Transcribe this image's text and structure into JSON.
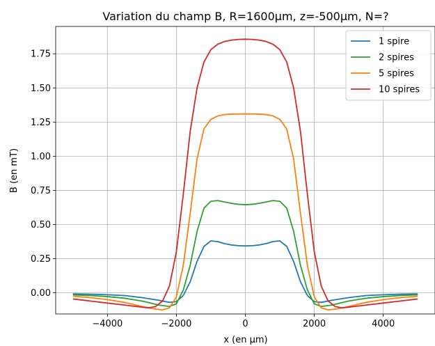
{
  "chart_data": {
    "type": "line",
    "title": "Variation du champ B, R=1600µm, z=-500µm, N=?",
    "xlabel": "x (en µm)",
    "ylabel": "B (en mT)",
    "xlim": [
      -5500,
      5500
    ],
    "ylim": [
      -0.155,
      1.95
    ],
    "xticks": [
      -4000,
      -2000,
      0,
      2000,
      4000
    ],
    "xtick_labels": [
      "−4000",
      "−2000",
      "0",
      "2000",
      "4000"
    ],
    "yticks": [
      0.0,
      0.25,
      0.5,
      0.75,
      1.0,
      1.25,
      1.5,
      1.75
    ],
    "ytick_labels": [
      "0.00",
      "0.25",
      "0.50",
      "0.75",
      "1.00",
      "1.25",
      "1.50",
      "1.75"
    ],
    "grid": true,
    "legend_position": "top-right",
    "series": [
      {
        "name": "1 spire",
        "color": "#1f77b4",
        "x": [
          -5000,
          -4500,
          -4000,
          -3500,
          -3000,
          -2500,
          -2200,
          -2000,
          -1800,
          -1600,
          -1400,
          -1200,
          -1000,
          -800,
          -600,
          -400,
          -200,
          0,
          200,
          400,
          600,
          800,
          1000,
          1200,
          1400,
          1600,
          1800,
          2000,
          2200,
          2500,
          3000,
          3500,
          4000,
          4500,
          5000
        ],
        "y": [
          -0.008,
          -0.01,
          -0.014,
          -0.02,
          -0.035,
          -0.055,
          -0.07,
          -0.065,
          -0.02,
          0.08,
          0.23,
          0.34,
          0.38,
          0.375,
          0.36,
          0.35,
          0.345,
          0.343,
          0.345,
          0.35,
          0.36,
          0.375,
          0.38,
          0.34,
          0.23,
          0.08,
          -0.02,
          -0.065,
          -0.07,
          -0.055,
          -0.035,
          -0.02,
          -0.014,
          -0.01,
          -0.008
        ]
      },
      {
        "name": "2 spires",
        "color": "#2ca02c",
        "x": [
          -5000,
          -4500,
          -4000,
          -3500,
          -3000,
          -2500,
          -2200,
          -2000,
          -1800,
          -1600,
          -1400,
          -1200,
          -1000,
          -800,
          -600,
          -400,
          -200,
          0,
          200,
          400,
          600,
          800,
          1000,
          1200,
          1400,
          1600,
          1800,
          2000,
          2200,
          2500,
          3000,
          3500,
          4000,
          4500,
          5000
        ],
        "y": [
          -0.015,
          -0.02,
          -0.028,
          -0.04,
          -0.06,
          -0.09,
          -0.1,
          -0.08,
          0.02,
          0.2,
          0.45,
          0.62,
          0.67,
          0.675,
          0.665,
          0.655,
          0.648,
          0.645,
          0.648,
          0.655,
          0.665,
          0.675,
          0.67,
          0.62,
          0.45,
          0.2,
          0.02,
          -0.08,
          -0.1,
          -0.09,
          -0.06,
          -0.04,
          -0.028,
          -0.02,
          -0.015
        ]
      },
      {
        "name": "5 spires",
        "color": "#ff7f0e",
        "x": [
          -5000,
          -4500,
          -4000,
          -3500,
          -3000,
          -2600,
          -2400,
          -2200,
          -2000,
          -1800,
          -1600,
          -1400,
          -1200,
          -1000,
          -800,
          -600,
          -400,
          -200,
          0,
          200,
          400,
          600,
          800,
          1000,
          1200,
          1400,
          1600,
          1800,
          2000,
          2200,
          2400,
          2600,
          3000,
          3500,
          4000,
          4500,
          5000
        ],
        "y": [
          -0.025,
          -0.035,
          -0.05,
          -0.07,
          -0.1,
          -0.12,
          -0.125,
          -0.11,
          -0.03,
          0.2,
          0.58,
          0.98,
          1.2,
          1.27,
          1.295,
          1.305,
          1.308,
          1.309,
          1.31,
          1.309,
          1.308,
          1.305,
          1.295,
          1.27,
          1.2,
          0.98,
          0.58,
          0.2,
          -0.03,
          -0.11,
          -0.125,
          -0.12,
          -0.1,
          -0.07,
          -0.05,
          -0.035,
          -0.025
        ]
      },
      {
        "name": "10 spires",
        "color": "#d62728",
        "x": [
          -5000,
          -4500,
          -4000,
          -3500,
          -3000,
          -2800,
          -2600,
          -2400,
          -2200,
          -2000,
          -1800,
          -1600,
          -1400,
          -1200,
          -1000,
          -800,
          -600,
          -400,
          -200,
          0,
          200,
          400,
          600,
          800,
          1000,
          1200,
          1400,
          1600,
          1800,
          2000,
          2200,
          2400,
          2600,
          2800,
          3000,
          3500,
          4000,
          4500,
          5000
        ],
        "y": [
          -0.045,
          -0.06,
          -0.075,
          -0.09,
          -0.105,
          -0.11,
          -0.1,
          -0.06,
          0.05,
          0.3,
          0.72,
          1.18,
          1.5,
          1.69,
          1.78,
          1.82,
          1.84,
          1.85,
          1.855,
          1.857,
          1.855,
          1.85,
          1.84,
          1.82,
          1.78,
          1.69,
          1.5,
          1.18,
          0.72,
          0.3,
          0.05,
          -0.06,
          -0.1,
          -0.11,
          -0.105,
          -0.09,
          -0.075,
          -0.06,
          -0.045
        ]
      }
    ]
  }
}
